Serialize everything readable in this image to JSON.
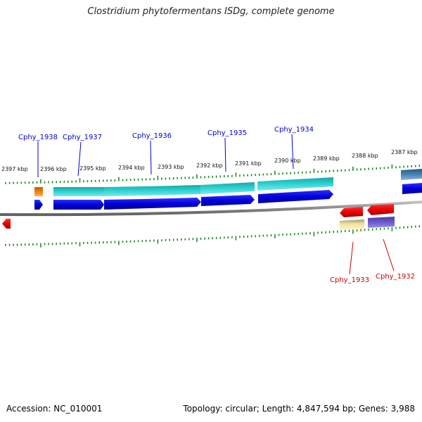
{
  "title": "Clostridium phytofermentans ISDg, complete genome",
  "footer": {
    "accession": "Accession: NC_010001",
    "stats": "Topology: circular; Length: 4,847,594 bp; Genes: 3,988"
  },
  "kbp_labels": [
    "2397 kbp",
    "2396 kbp",
    "2395 kbp",
    "2394 kbp",
    "2393 kbp",
    "2392 kbp",
    "2391 kbp",
    "2390 kbp",
    "2389 kbp",
    "2388 kbp",
    "2387 kbp"
  ],
  "genes": [
    {
      "name": "Cphy_1938",
      "color": "#0000cc"
    },
    {
      "name": "Cphy_1937",
      "color": "#0000cc"
    },
    {
      "name": "Cphy_1936",
      "color": "#0000cc"
    },
    {
      "name": "Cphy_1935",
      "color": "#0000cc"
    },
    {
      "name": "Cphy_1934",
      "color": "#0000cc"
    },
    {
      "name": "Cphy_1933",
      "color": "#cc0000"
    },
    {
      "name": "Cphy_1932",
      "color": "#cc0000"
    }
  ],
  "colors": {
    "forward_strand": "#0000dd",
    "reverse_strand": "#ee0000",
    "forward_feature": "#20c8c8",
    "backbone": "#8a8a8a",
    "ticks": "#228b22",
    "cog_orange": "#f08000",
    "cog_yellow": "#f0e0a0",
    "cog_purple": "#6a5acd",
    "cog_steel": "#4682b4"
  }
}
